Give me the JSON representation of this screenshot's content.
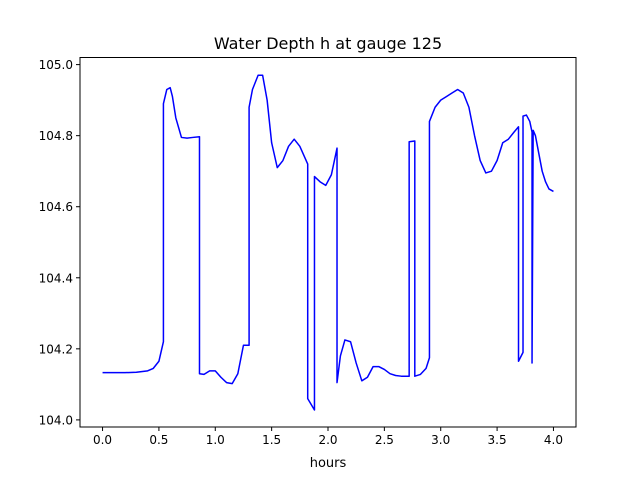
{
  "chart_data": {
    "type": "line",
    "title": "Water Depth h at gauge 125",
    "xlabel": "hours",
    "ylabel": "",
    "xlim": [
      -0.2,
      4.2
    ],
    "ylim": [
      103.98,
      105.02
    ],
    "xticks": [
      0.0,
      0.5,
      1.0,
      1.5,
      2.0,
      2.5,
      3.0,
      3.5,
      4.0
    ],
    "xtick_labels": [
      "0.0",
      "0.5",
      "1.0",
      "1.5",
      "2.0",
      "2.5",
      "3.0",
      "3.5",
      "4.0"
    ],
    "yticks": [
      104.0,
      104.2,
      104.4,
      104.6,
      104.8,
      105.0
    ],
    "ytick_labels": [
      "104.0",
      "104.2",
      "104.4",
      "104.6",
      "104.8",
      "105.0"
    ],
    "grid": false,
    "legend": "none",
    "series": [
      {
        "color": "#0000ff",
        "x": [
          0.0,
          0.1,
          0.2,
          0.3,
          0.4,
          0.45,
          0.5,
          0.54,
          0.54,
          0.57,
          0.6,
          0.62,
          0.65,
          0.7,
          0.75,
          0.8,
          0.86,
          0.86,
          0.9,
          0.95,
          1.0,
          1.05,
          1.1,
          1.15,
          1.2,
          1.25,
          1.3,
          1.3,
          1.33,
          1.38,
          1.42,
          1.46,
          1.5,
          1.55,
          1.6,
          1.65,
          1.7,
          1.75,
          1.82,
          1.82,
          1.88,
          1.88,
          1.93,
          1.98,
          2.03,
          2.08,
          2.08,
          2.11,
          2.15,
          2.2,
          2.25,
          2.3,
          2.35,
          2.4,
          2.45,
          2.5,
          2.55,
          2.6,
          2.65,
          2.7,
          2.72,
          2.72,
          2.77,
          2.77,
          2.82,
          2.87,
          2.9,
          2.9,
          2.95,
          3.0,
          3.05,
          3.1,
          3.15,
          3.2,
          3.25,
          3.3,
          3.35,
          3.4,
          3.45,
          3.5,
          3.55,
          3.6,
          3.65,
          3.69,
          3.69,
          3.73,
          3.73,
          3.76,
          3.79,
          3.81,
          3.81,
          3.82,
          3.84,
          3.87,
          3.9,
          3.93,
          3.96,
          4.0
        ],
        "y": [
          104.133,
          104.133,
          104.133,
          104.134,
          104.138,
          104.145,
          104.165,
          104.22,
          104.89,
          104.93,
          104.935,
          104.91,
          104.85,
          104.795,
          104.793,
          104.795,
          104.797,
          104.13,
          104.128,
          104.138,
          104.138,
          104.12,
          104.105,
          104.102,
          104.13,
          104.21,
          104.21,
          104.88,
          104.93,
          104.97,
          104.97,
          104.9,
          104.78,
          104.71,
          104.73,
          104.77,
          104.79,
          104.77,
          104.72,
          104.06,
          104.028,
          104.685,
          104.67,
          104.66,
          104.69,
          104.765,
          104.105,
          104.18,
          104.225,
          104.22,
          104.16,
          104.11,
          104.12,
          104.15,
          104.15,
          104.142,
          104.13,
          104.125,
          104.123,
          104.123,
          104.123,
          104.783,
          104.785,
          104.123,
          104.128,
          104.145,
          104.175,
          104.84,
          104.88,
          104.9,
          104.91,
          104.92,
          104.93,
          104.92,
          104.88,
          104.8,
          104.73,
          104.695,
          104.7,
          104.73,
          104.78,
          104.79,
          104.81,
          104.825,
          104.165,
          104.19,
          104.855,
          104.858,
          104.84,
          104.81,
          104.16,
          104.815,
          104.8,
          104.75,
          104.7,
          104.67,
          104.65,
          104.643
        ]
      }
    ]
  }
}
